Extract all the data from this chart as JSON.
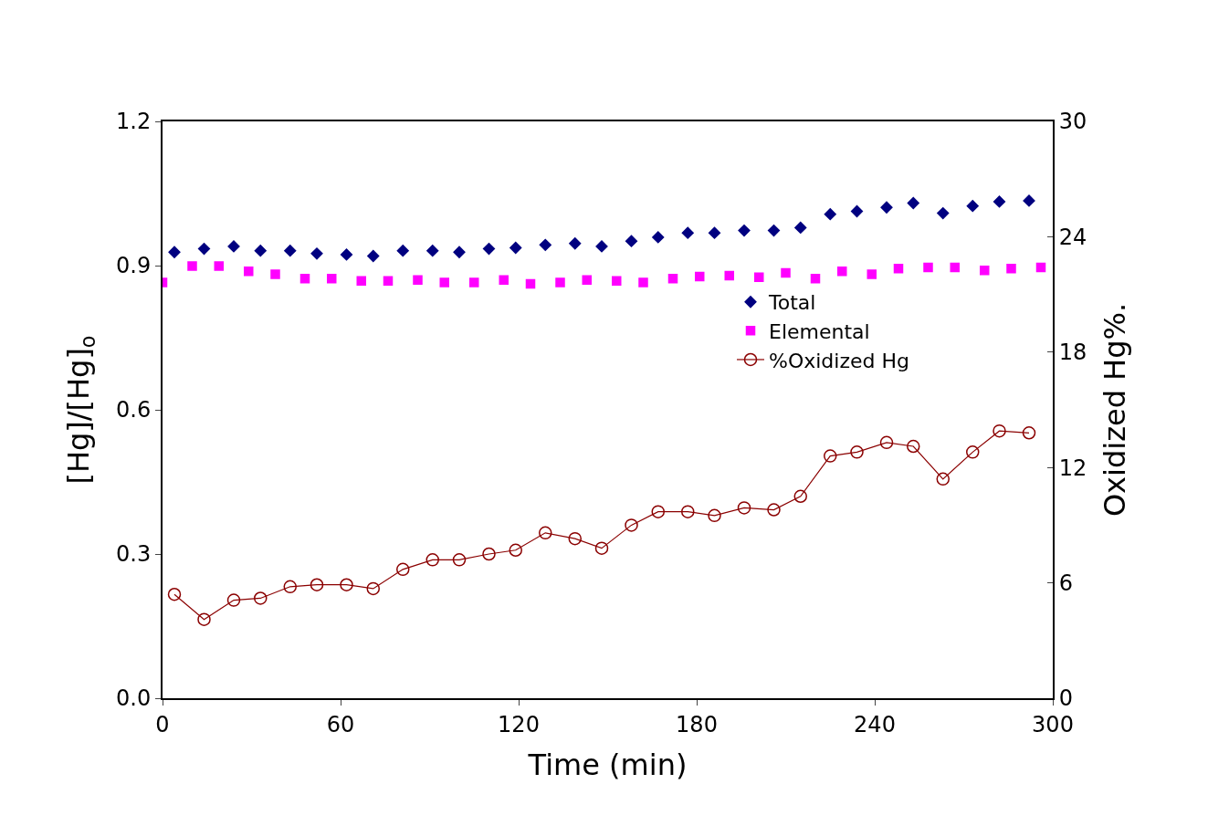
{
  "chart_data": {
    "type": "scatter",
    "xlabel": "Time (min)",
    "ylabel": "[Hg]/[Hg]$_{o}$",
    "y2label": "Oxidized Hg%.",
    "xlim": [
      0,
      300
    ],
    "xticks": [
      0,
      60,
      120,
      180,
      240,
      300
    ],
    "ylim": [
      0,
      1.2
    ],
    "yticks": [
      {
        "value": 0,
        "label": "0.0"
      },
      0.3,
      0.6,
      0.9,
      1.2
    ],
    "y2lim": [
      0,
      30
    ],
    "y2ticks": [
      0,
      6,
      12,
      18,
      24,
      30
    ],
    "grid": false,
    "legend": "right",
    "series": [
      {
        "name": "Total",
        "marker": "diamond",
        "color": "#000080",
        "x": [
          4,
          14,
          24,
          33,
          43,
          52,
          62,
          71,
          81,
          91,
          100,
          110,
          119,
          129,
          139,
          148,
          158,
          167,
          177,
          186,
          196,
          206,
          215,
          225,
          234,
          244,
          253,
          263,
          273,
          282,
          292
        ],
        "values": [
          0.928,
          0.935,
          0.94,
          0.931,
          0.931,
          0.925,
          0.923,
          0.92,
          0.931,
          0.931,
          0.928,
          0.935,
          0.937,
          0.943,
          0.946,
          0.94,
          0.951,
          0.959,
          0.968,
          0.968,
          0.973,
          0.973,
          0.979,
          1.007,
          1.013,
          1.021,
          1.03,
          1.009,
          1.024,
          1.033,
          1.035
        ]
      },
      {
        "name": "Elemental",
        "marker": "square",
        "color": "#ff00ff",
        "x": [
          0,
          10,
          19,
          29,
          38,
          48,
          57,
          67,
          76,
          86,
          95,
          105,
          115,
          124,
          134,
          143,
          153,
          162,
          172,
          181,
          191,
          201,
          210,
          220,
          229,
          239,
          248,
          258,
          267,
          277,
          286,
          296
        ],
        "values": [
          0.865,
          0.899,
          0.899,
          0.888,
          0.882,
          0.873,
          0.873,
          0.868,
          0.868,
          0.87,
          0.865,
          0.865,
          0.87,
          0.862,
          0.865,
          0.87,
          0.868,
          0.865,
          0.873,
          0.877,
          0.879,
          0.876,
          0.885,
          0.873,
          0.888,
          0.882,
          0.894,
          0.896,
          0.896,
          0.89,
          0.894,
          0.896
        ]
      },
      {
        "name": "%Oxidized Hg",
        "type": "line",
        "marker": "circle",
        "axis": "y2",
        "color": "#8b0000",
        "x": [
          4,
          14,
          24,
          33,
          43,
          52,
          62,
          71,
          81,
          91,
          100,
          110,
          119,
          129,
          139,
          148,
          158,
          167,
          177,
          186,
          196,
          206,
          215,
          225,
          234,
          244,
          253,
          263,
          273,
          282,
          292
        ],
        "values": [
          5.4,
          4.1,
          5.1,
          5.2,
          5.8,
          5.9,
          5.9,
          5.7,
          6.7,
          7.2,
          7.2,
          7.5,
          7.7,
          8.6,
          8.3,
          7.8,
          9.0,
          9.7,
          9.7,
          9.5,
          9.9,
          9.8,
          10.5,
          12.6,
          12.8,
          13.3,
          13.1,
          11.4,
          12.8,
          13.9,
          13.8
        ]
      }
    ]
  }
}
